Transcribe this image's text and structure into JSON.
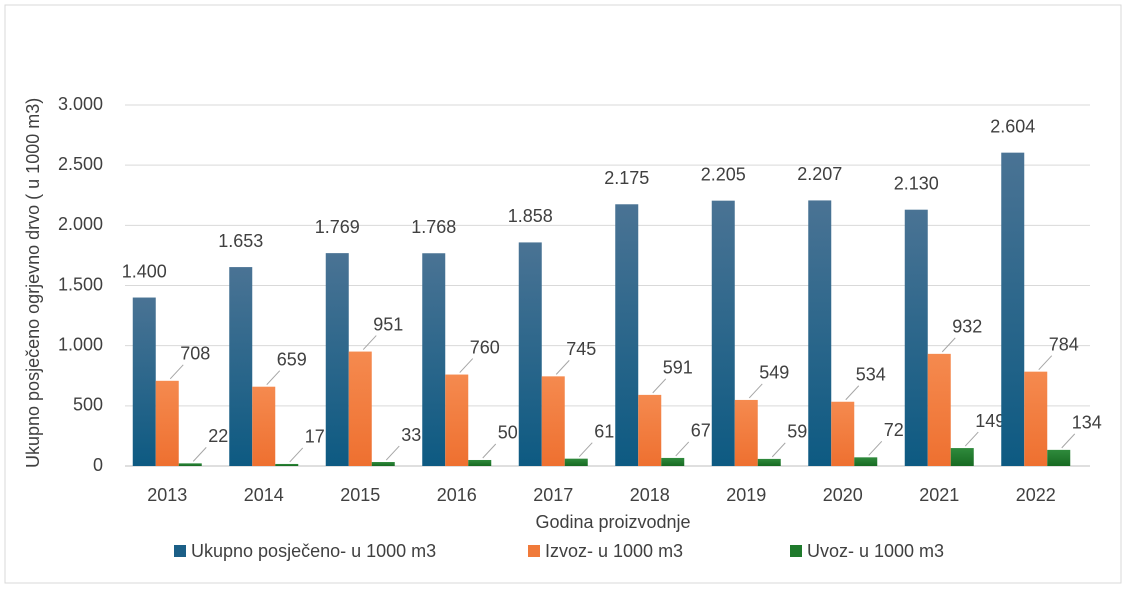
{
  "chart_data": {
    "type": "bar",
    "y_label": "Ukupno posječeno ogrjevno drvo ( u 1000 m3)",
    "x_label": "Godina proizvodnje",
    "categories": [
      "2013",
      "2014",
      "2015",
      "2016",
      "2017",
      "2018",
      "2019",
      "2020",
      "2021",
      "2022"
    ],
    "series": [
      {
        "name": "Ukupno posječeno- u 1000 m3",
        "color": "#1b5f87",
        "values": [
          1400,
          1653,
          1769,
          1768,
          1858,
          2175,
          2205,
          2207,
          2130,
          2604
        ],
        "value_labels": [
          "1.400",
          "1.653",
          "1.769",
          "1.768",
          "1.858",
          "2.175",
          "2.205",
          "2.207",
          "2.130",
          "2.604"
        ]
      },
      {
        "name": "Izvoz- u 1000 m3",
        "color": "#f07a3a",
        "values": [
          708,
          659,
          951,
          760,
          745,
          591,
          549,
          534,
          932,
          784
        ]
      },
      {
        "name": "Uvoz- u 1000 m3",
        "color": "#1f7a2c",
        "values": [
          22,
          17,
          33,
          50,
          61,
          67,
          59,
          72,
          149,
          134
        ]
      }
    ],
    "ylim": [
      0,
      3000
    ],
    "yticks": [
      0,
      500,
      {
        "value": 1000,
        "label": "1.000"
      },
      {
        "value": 1500,
        "label": "1.500"
      },
      {
        "value": 2000,
        "label": "2.000"
      },
      {
        "value": 2500,
        "label": "2.500"
      },
      {
        "value": 3000,
        "label": "3.000"
      }
    ],
    "grid": true,
    "legend": "bottom"
  }
}
